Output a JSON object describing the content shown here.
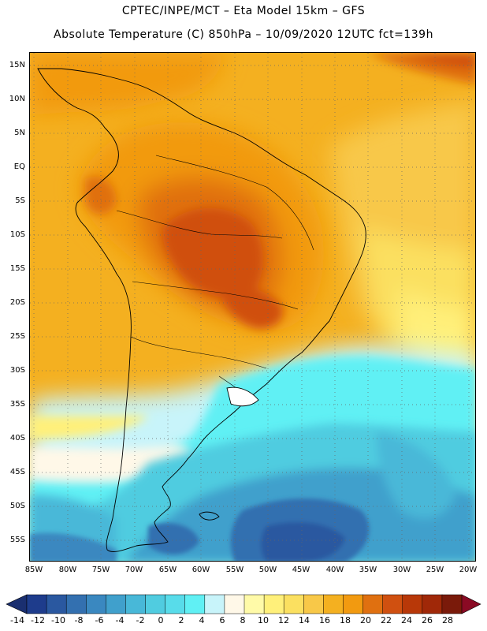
{
  "title_line1": "CPTEC/INPE/MCT –  Eta Model 15km – GFS",
  "title_line2": "Absolute Temperature (C) 850hPa – 10/09/2020 12UTC fct=139h",
  "lat_labels": [
    "15N",
    "10N",
    "5N",
    "EQ",
    "5S",
    "10S",
    "15S",
    "20S",
    "25S",
    "30S",
    "35S",
    "40S",
    "45S",
    "50S",
    "55S"
  ],
  "lon_labels": [
    "85W",
    "80W",
    "75W",
    "70W",
    "65W",
    "60W",
    "55W",
    "50W",
    "45W",
    "40W",
    "35W",
    "30W",
    "25W",
    "20W"
  ],
  "colorbar": {
    "labels": [
      "-14",
      "-12",
      "-10",
      "-8",
      "-6",
      "-4",
      "-2",
      "0",
      "2",
      "4",
      "6",
      "8",
      "10",
      "12",
      "14",
      "16",
      "18",
      "20",
      "22",
      "24",
      "26",
      "28"
    ],
    "colors": [
      "#1e3c8c",
      "#2a58a0",
      "#3370b0",
      "#3a88c0",
      "#40a0cc",
      "#48b8d8",
      "#50cce0",
      "#58dcea",
      "#60f0f4",
      "#c8f4fa",
      "#fff8e8",
      "#fffaa8",
      "#fff07a",
      "#fbe060",
      "#f8c848",
      "#f4b020",
      "#f29a10",
      "#e07010",
      "#d05010",
      "#b83808",
      "#a02808",
      "#7a1a0a"
    ]
  }
}
